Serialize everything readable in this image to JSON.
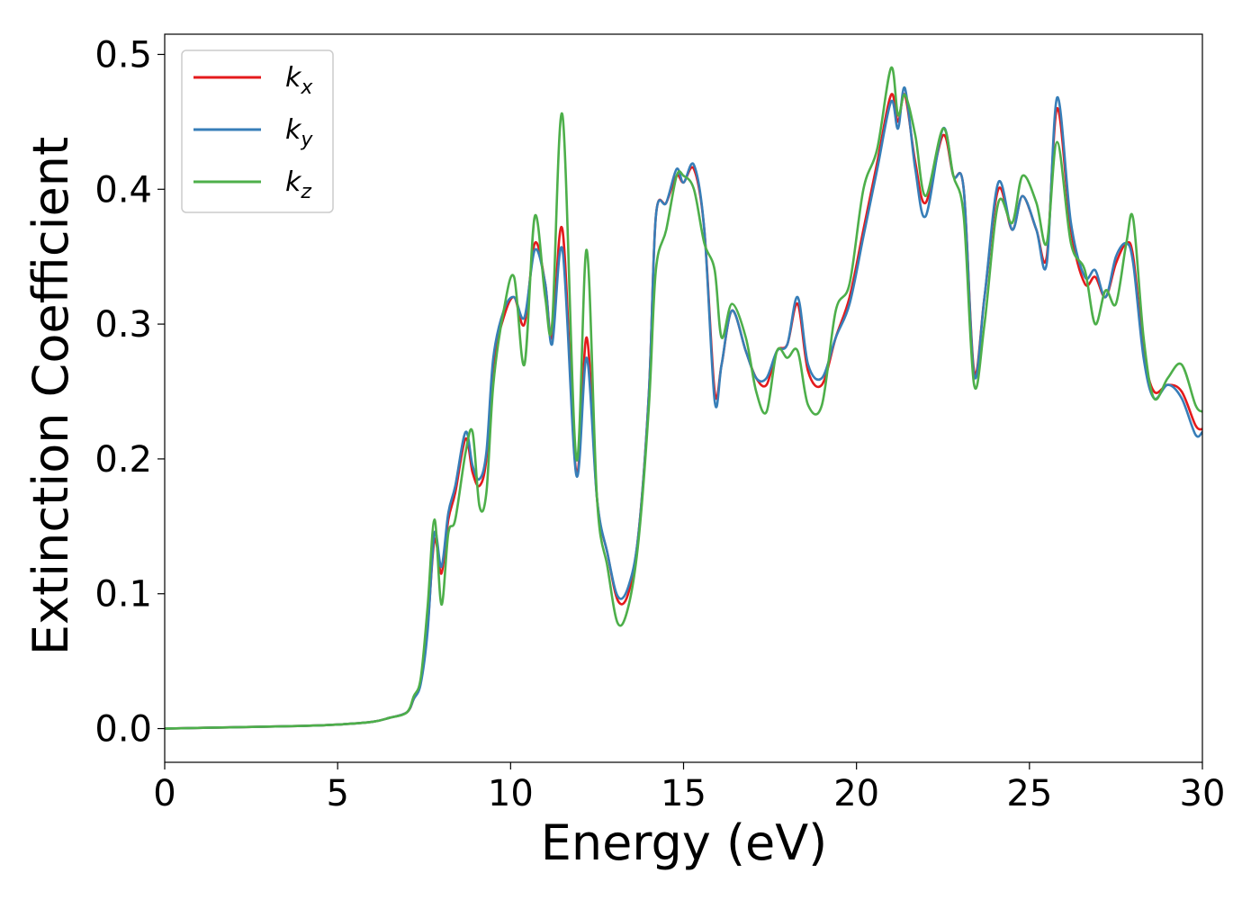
{
  "chart_data": {
    "type": "line",
    "title": "",
    "xlabel": "Energy (eV)",
    "ylabel": "Extinction Coefficient",
    "xlim": [
      0,
      30
    ],
    "ylim": [
      -0.025,
      0.515
    ],
    "xticks": [
      0,
      5,
      10,
      15,
      20,
      25,
      30
    ],
    "xtick_labels": [
      "0",
      "5",
      "10",
      "15",
      "20",
      "25",
      "30"
    ],
    "yticks": [
      0.0,
      0.1,
      0.2,
      0.3,
      0.4,
      0.5
    ],
    "ytick_labels": [
      "0.0",
      "0.1",
      "0.2",
      "0.3",
      "0.4",
      "0.5"
    ],
    "grid": false,
    "legend_position": "top-left",
    "series": [
      {
        "name": "k_x",
        "label_main": "k",
        "label_sub": "x",
        "color": "#e41a1c",
        "x": [
          0,
          2,
          4,
          5,
          6,
          6.5,
          7.0,
          7.2,
          7.4,
          7.6,
          7.8,
          8.0,
          8.2,
          8.4,
          8.7,
          8.9,
          9.1,
          9.3,
          9.5,
          9.8,
          10.1,
          10.4,
          10.7,
          11.0,
          11.2,
          11.5,
          11.9,
          12.2,
          12.5,
          12.8,
          13.1,
          13.4,
          13.7,
          14.0,
          14.2,
          14.5,
          14.8,
          15.0,
          15.3,
          15.6,
          15.9,
          16.1,
          16.4,
          16.8,
          17.1,
          17.4,
          17.7,
          18.0,
          18.3,
          18.6,
          19.0,
          19.4,
          19.8,
          20.2,
          20.6,
          21.0,
          21.2,
          21.4,
          21.7,
          22.0,
          22.5,
          22.8,
          23.1,
          23.4,
          23.7,
          24.1,
          24.5,
          24.8,
          25.2,
          25.5,
          25.8,
          26.2,
          26.6,
          26.9,
          27.2,
          27.5,
          27.8,
          28.0,
          28.3,
          28.6,
          29.0,
          29.4,
          29.8,
          30.0
        ],
        "y": [
          0.0,
          0.001,
          0.002,
          0.003,
          0.005,
          0.008,
          0.012,
          0.022,
          0.035,
          0.075,
          0.14,
          0.115,
          0.155,
          0.175,
          0.215,
          0.19,
          0.18,
          0.2,
          0.27,
          0.305,
          0.32,
          0.3,
          0.36,
          0.33,
          0.29,
          0.37,
          0.19,
          0.29,
          0.17,
          0.13,
          0.095,
          0.1,
          0.145,
          0.25,
          0.38,
          0.39,
          0.41,
          0.405,
          0.415,
          0.37,
          0.25,
          0.27,
          0.31,
          0.28,
          0.26,
          0.255,
          0.28,
          0.285,
          0.315,
          0.265,
          0.255,
          0.29,
          0.32,
          0.37,
          0.42,
          0.47,
          0.45,
          0.47,
          0.42,
          0.39,
          0.44,
          0.41,
          0.4,
          0.265,
          0.32,
          0.4,
          0.37,
          0.395,
          0.37,
          0.35,
          0.46,
          0.37,
          0.33,
          0.335,
          0.32,
          0.345,
          0.36,
          0.35,
          0.28,
          0.25,
          0.255,
          0.25,
          0.225,
          0.222
        ]
      },
      {
        "name": "k_y",
        "label_main": "k",
        "label_sub": "y",
        "color": "#377eb8",
        "x": [
          0,
          2,
          4,
          5,
          6,
          6.5,
          7.0,
          7.2,
          7.4,
          7.6,
          7.8,
          8.0,
          8.2,
          8.4,
          8.7,
          8.9,
          9.1,
          9.3,
          9.5,
          9.8,
          10.1,
          10.4,
          10.7,
          11.0,
          11.2,
          11.5,
          11.9,
          12.2,
          12.5,
          12.8,
          13.1,
          13.4,
          13.7,
          14.0,
          14.2,
          14.5,
          14.8,
          15.0,
          15.3,
          15.6,
          15.9,
          16.1,
          16.4,
          16.8,
          17.1,
          17.4,
          17.7,
          18.0,
          18.3,
          18.6,
          19.0,
          19.4,
          19.8,
          20.2,
          20.6,
          21.0,
          21.2,
          21.4,
          21.7,
          22.0,
          22.5,
          22.8,
          23.1,
          23.4,
          23.7,
          24.1,
          24.5,
          24.8,
          25.2,
          25.5,
          25.8,
          26.2,
          26.6,
          26.9,
          27.2,
          27.5,
          27.8,
          28.0,
          28.3,
          28.6,
          29.0,
          29.4,
          29.8,
          30.0
        ],
        "y": [
          0.0,
          0.001,
          0.002,
          0.003,
          0.005,
          0.008,
          0.012,
          0.022,
          0.033,
          0.072,
          0.145,
          0.12,
          0.16,
          0.18,
          0.22,
          0.195,
          0.185,
          0.205,
          0.275,
          0.31,
          0.32,
          0.305,
          0.355,
          0.33,
          0.285,
          0.355,
          0.188,
          0.275,
          0.17,
          0.13,
          0.098,
          0.105,
          0.145,
          0.25,
          0.38,
          0.39,
          0.415,
          0.405,
          0.418,
          0.37,
          0.243,
          0.27,
          0.31,
          0.28,
          0.26,
          0.26,
          0.28,
          0.285,
          0.32,
          0.27,
          0.26,
          0.29,
          0.315,
          0.365,
          0.415,
          0.465,
          0.445,
          0.475,
          0.415,
          0.38,
          0.445,
          0.41,
          0.4,
          0.262,
          0.32,
          0.405,
          0.37,
          0.395,
          0.37,
          0.345,
          0.468,
          0.375,
          0.335,
          0.34,
          0.32,
          0.35,
          0.36,
          0.345,
          0.275,
          0.245,
          0.255,
          0.245,
          0.218,
          0.22
        ]
      },
      {
        "name": "k_z",
        "label_main": "k",
        "label_sub": "z",
        "color": "#4daf4a",
        "x": [
          0,
          2,
          4,
          5,
          6,
          6.5,
          7.0,
          7.2,
          7.4,
          7.6,
          7.8,
          8.0,
          8.2,
          8.4,
          8.7,
          8.9,
          9.1,
          9.3,
          9.5,
          9.8,
          10.1,
          10.4,
          10.7,
          11.0,
          11.2,
          11.5,
          11.9,
          12.2,
          12.5,
          12.8,
          13.1,
          13.4,
          13.7,
          14.0,
          14.2,
          14.5,
          14.8,
          15.0,
          15.3,
          15.6,
          15.9,
          16.1,
          16.4,
          16.8,
          17.1,
          17.4,
          17.7,
          18.0,
          18.3,
          18.6,
          19.0,
          19.4,
          19.8,
          20.2,
          20.6,
          21.0,
          21.2,
          21.4,
          21.7,
          22.0,
          22.5,
          22.8,
          23.1,
          23.4,
          23.7,
          24.1,
          24.5,
          24.8,
          25.2,
          25.5,
          25.8,
          26.2,
          26.6,
          26.9,
          27.2,
          27.5,
          27.8,
          28.0,
          28.3,
          28.6,
          29.0,
          29.4,
          29.8,
          30.0
        ],
        "y": [
          0.0,
          0.001,
          0.002,
          0.003,
          0.005,
          0.008,
          0.012,
          0.024,
          0.037,
          0.09,
          0.155,
          0.092,
          0.145,
          0.155,
          0.205,
          0.22,
          0.165,
          0.175,
          0.255,
          0.31,
          0.335,
          0.27,
          0.38,
          0.32,
          0.3,
          0.455,
          0.2,
          0.355,
          0.17,
          0.12,
          0.078,
          0.09,
          0.14,
          0.24,
          0.34,
          0.37,
          0.41,
          0.41,
          0.4,
          0.36,
          0.34,
          0.29,
          0.315,
          0.29,
          0.25,
          0.235,
          0.28,
          0.275,
          0.28,
          0.24,
          0.24,
          0.31,
          0.33,
          0.4,
          0.43,
          0.49,
          0.455,
          0.47,
          0.44,
          0.395,
          0.445,
          0.41,
          0.38,
          0.255,
          0.3,
          0.39,
          0.375,
          0.41,
          0.39,
          0.36,
          0.435,
          0.36,
          0.34,
          0.3,
          0.325,
          0.315,
          0.36,
          0.378,
          0.29,
          0.245,
          0.26,
          0.27,
          0.24,
          0.235
        ]
      }
    ]
  }
}
